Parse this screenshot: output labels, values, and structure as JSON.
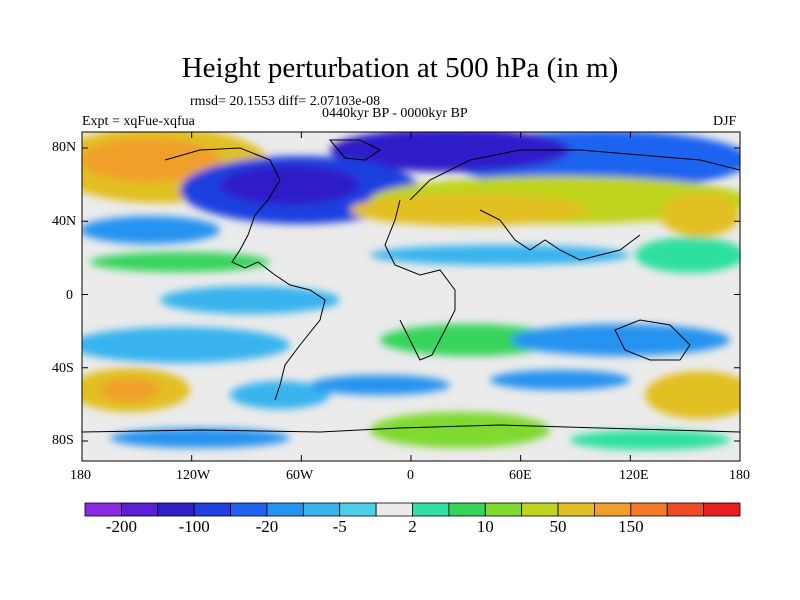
{
  "title": "Height perturbation at 500 hPa (in m)",
  "stats": "rmsd= 20.1553 diff= 2.07103e-08",
  "period": "0440kyr BP - 0000kyr BP",
  "experiment": "Expt = xqFue-xqfua",
  "season": "DJF",
  "lat_labels": [
    "80N",
    "40N",
    "0",
    "40S",
    "80S"
  ],
  "lon_labels": [
    "180",
    "120W",
    "60W",
    "0",
    "60E",
    "120E",
    "180"
  ],
  "colorbar": {
    "colors": [
      "#8a2be2",
      "#5a1fd6",
      "#2f1fc9",
      "#1f3fe0",
      "#1f63f0",
      "#2593f0",
      "#38b3ee",
      "#4bd0e8",
      "#ebebeb",
      "#2fe0a0",
      "#37d45b",
      "#7fd92e",
      "#bfd41f",
      "#e2c023",
      "#f0a02a",
      "#f27a2a",
      "#ee4a25",
      "#e81f1f"
    ],
    "tick_labels": [
      "-200",
      "-100",
      "-20",
      "-5",
      "2",
      "10",
      "50",
      "150"
    ]
  }
}
